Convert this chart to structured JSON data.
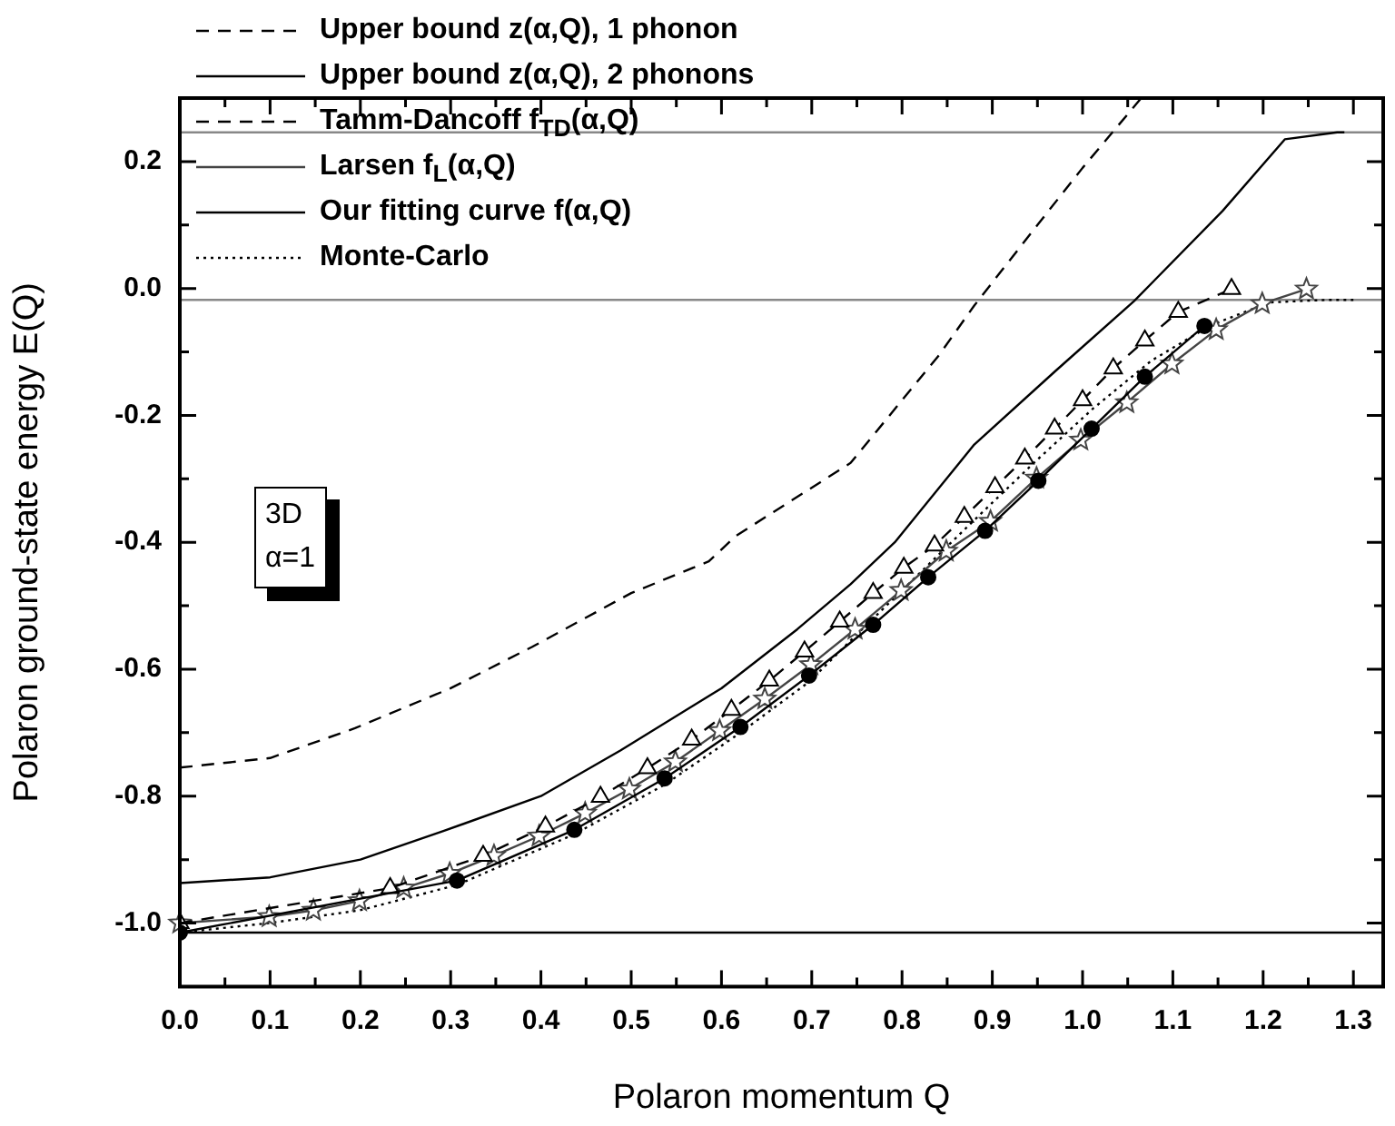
{
  "chart_data": {
    "type": "line",
    "xlabel": "Polaron momentum Q",
    "ylabel": "Polaron ground-state energy E(Q)",
    "xlim": [
      0,
      1.333
    ],
    "ylim": [
      -1.1,
      0.3
    ],
    "xticks": [
      {
        "value": 0,
        "label": "0.0"
      },
      {
        "value": 0.05,
        "label": null
      },
      0.1,
      {
        "value": 0.15,
        "label": null
      },
      0.2,
      {
        "value": 0.25,
        "label": null
      },
      0.3,
      {
        "value": 0.35,
        "label": null
      },
      0.4,
      {
        "value": 0.45,
        "label": null
      },
      0.5,
      {
        "value": 0.55,
        "label": null
      },
      0.6,
      {
        "value": 0.65,
        "label": null
      },
      0.7,
      {
        "value": 0.75,
        "label": null
      },
      0.8,
      {
        "value": 0.85,
        "label": null
      },
      0.9,
      {
        "value": 0.95,
        "label": null
      },
      {
        "value": 1,
        "label": "1.0"
      },
      {
        "value": 1.05,
        "label": null
      },
      1.1,
      {
        "value": 1.15,
        "label": null
      },
      1.2,
      {
        "value": 1.25,
        "label": null
      },
      1.3
    ],
    "yticks": [
      {
        "value": -1,
        "label": "-1.0"
      },
      {
        "value": -0.9,
        "label": null
      },
      -0.8,
      {
        "value": -0.7,
        "label": null
      },
      -0.6,
      {
        "value": -0.5,
        "label": null
      },
      -0.4,
      {
        "value": -0.3,
        "label": null
      },
      -0.2,
      {
        "value": -0.1,
        "label": null
      },
      {
        "value": 0,
        "label": "0.0"
      },
      {
        "value": 0.1,
        "label": null
      },
      0.2
    ],
    "legend": "top left",
    "annotations": [
      "3D",
      "α=1"
    ],
    "ref_lines": [
      {
        "axis": "y",
        "value": 0.246,
        "label": null,
        "color": "#888888",
        "line_style": "solid"
      },
      {
        "axis": "y",
        "value": -0.018,
        "label": null,
        "color": "#888888",
        "line_style": "solid"
      },
      {
        "axis": "y",
        "value": -1.015,
        "label": null,
        "color": "#000000",
        "line_style": "solid"
      }
    ],
    "series": [
      {
        "name": "Upper bound z(α,Q), 1 phonon",
        "color": "#000000",
        "line_style": "dashed",
        "marker": "none",
        "x": [
          0,
          0.1,
          0.194,
          0.3,
          0.39,
          0.5,
          0.586,
          0.616,
          0.743,
          0.841,
          0.88,
          0.95,
          1.0,
          1.065
        ],
        "values": [
          -0.755,
          -0.74,
          -0.693,
          -0.63,
          -0.565,
          -0.48,
          -0.43,
          -0.39,
          -0.275,
          -0.105,
          -0.027,
          0.1,
          0.19,
          0.3
        ]
      },
      {
        "name": "Upper bound z(α,Q), 2 phonons",
        "color": "#000000",
        "line_style": "solid",
        "marker": "none",
        "x": [
          0,
          0.1,
          0.2,
          0.292,
          0.4,
          0.488,
          0.6,
          0.684,
          0.743,
          0.792,
          0.88,
          0.97,
          1.057,
          1.155,
          1.224,
          1.282,
          1.29
        ],
        "values": [
          -0.937,
          -0.928,
          -0.9,
          -0.855,
          -0.8,
          -0.728,
          -0.63,
          -0.537,
          -0.466,
          -0.4,
          -0.246,
          -0.13,
          -0.02,
          0.122,
          0.235,
          0.246,
          0.246
        ]
      },
      {
        "name": "Tamm-Dancoff f$_{TD}$(α,Q)",
        "color": "#000000",
        "line_style": "dashed",
        "marker": "triangle",
        "x": [
          0,
          0.233,
          0.336,
          0.405,
          0.466,
          0.518,
          0.567,
          0.611,
          0.653,
          0.692,
          0.731,
          0.768,
          0.802,
          0.836,
          0.869,
          0.903,
          0.936,
          0.969,
          1.0,
          1.034,
          1.069,
          1.106,
          1.165
        ],
        "values": [
          -1.0,
          -0.945,
          -0.894,
          -0.848,
          -0.801,
          -0.756,
          -0.711,
          -0.664,
          -0.618,
          -0.572,
          -0.525,
          -0.48,
          -0.44,
          -0.405,
          -0.36,
          -0.313,
          -0.268,
          -0.221,
          -0.176,
          -0.126,
          -0.082,
          -0.037,
          -0.001
        ]
      },
      {
        "name": "Larsen f$_{L}$(α,Q)",
        "color": "#444444",
        "line_style": "solid",
        "marker": "star",
        "x": [
          0,
          0.099,
          0.148,
          0.199,
          0.248,
          0.299,
          0.348,
          0.398,
          0.449,
          0.498,
          0.549,
          0.598,
          0.648,
          0.699,
          0.748,
          0.799,
          0.849,
          0.898,
          0.949,
          0.998,
          1.049,
          1.099,
          1.148,
          1.199,
          1.248
        ],
        "values": [
          -1.0,
          -0.99,
          -0.98,
          -0.965,
          -0.945,
          -0.922,
          -0.894,
          -0.863,
          -0.827,
          -0.789,
          -0.746,
          -0.697,
          -0.647,
          -0.593,
          -0.537,
          -0.476,
          -0.414,
          -0.367,
          -0.299,
          -0.239,
          -0.18,
          -0.119,
          -0.065,
          -0.024,
          -0.001
        ]
      },
      {
        "name": "Our fitting curve f(α,Q)",
        "color": "#000000",
        "line_style": "solid",
        "marker": "circle",
        "x": [
          0,
          0.307,
          0.437,
          0.537,
          0.621,
          0.697,
          0.768,
          0.829,
          0.892,
          0.951,
          1.01,
          1.069,
          1.135
        ],
        "values": [
          -1.015,
          -0.933,
          -0.853,
          -0.772,
          -0.691,
          -0.61,
          -0.53,
          -0.455,
          -0.382,
          -0.303,
          -0.221,
          -0.139,
          -0.059
        ]
      },
      {
        "name": "Monte-Carlo",
        "color": "#000000",
        "line_style": "dotted",
        "marker": "none",
        "x": [
          0,
          0.099,
          0.199,
          0.307,
          0.437,
          0.537,
          0.621,
          0.697,
          0.75,
          0.88,
          0.946,
          1.011,
          1.076,
          1.142,
          1.207,
          1.27,
          1.3
        ],
        "values": [
          -1.015,
          -1.0,
          -0.98,
          -0.94,
          -0.86,
          -0.782,
          -0.7,
          -0.62,
          -0.545,
          -0.365,
          -0.275,
          -0.19,
          -0.114,
          -0.058,
          -0.022,
          -0.018,
          -0.018
        ]
      }
    ]
  }
}
